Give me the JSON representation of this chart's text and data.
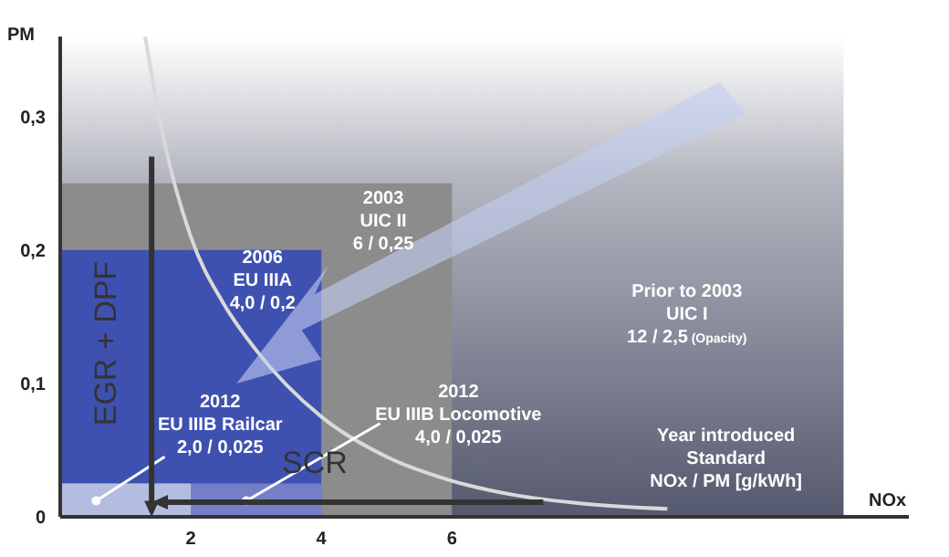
{
  "chart_data": {
    "type": "area",
    "xlabel": "NOx",
    "ylabel": "PM",
    "xlim": [
      0,
      13
    ],
    "ylim": [
      0,
      0.36
    ],
    "xticks": [
      2,
      4,
      6
    ],
    "yticks": [
      0,
      {
        "value": 0.1,
        "label": "0,1"
      },
      {
        "value": 0.2,
        "label": "0,2"
      },
      {
        "value": 0.3,
        "label": "0,3"
      }
    ],
    "series": [
      {
        "color": "#8c8c8c",
        "x": [
          0,
          6
        ],
        "values": [
          0.25,
          0.25
        ]
      },
      {
        "color": "#3f51b0",
        "x": [
          0,
          4
        ],
        "values": [
          0.2,
          0.2
        ]
      },
      {
        "color": "#7380c8",
        "x": [
          0,
          4
        ],
        "values": [
          0.025,
          0.025
        ]
      },
      {
        "color": "#b4bde0",
        "x": [
          0,
          2
        ],
        "values": [
          0.025,
          0.025
        ]
      },
      {
        "type": "line",
        "color": "#d9d9d9",
        "x": [
          1.3,
          1.6,
          2,
          2.5,
          3,
          4,
          5,
          6,
          7,
          8,
          9.3
        ],
        "values": [
          0.36,
          0.28,
          0.21,
          0.16,
          0.125,
          0.075,
          0.045,
          0.027,
          0.016,
          0.01,
          0.006
        ]
      }
    ],
    "bands": [
      {
        "axis": "x",
        "from": 0,
        "to": 12,
        "color": "#55596f",
        "label": "Prior to 2003\nUIC I\n12 / 2,5 (Opacity)"
      }
    ],
    "annotations": [
      "2003\nUIC II\n6 / 0,25",
      "2006\nEU IIIA\n4,0 / 0,2",
      "2012\nEU IIIB Railcar\n2,0 / 0,025",
      "2012\nEU IIIB Locomotive\n4,0 / 0,025",
      "Year introduced\nStandard\nNOx / PM [g/kWh]",
      "EGR + DPF",
      "SCR"
    ]
  }
}
